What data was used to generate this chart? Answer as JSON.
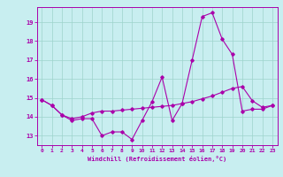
{
  "xlabel": "Windchill (Refroidissement éolien,°C)",
  "bg_color": "#c8eef0",
  "grid_color": "#9dd4cc",
  "line_color": "#aa00aa",
  "xlim": [
    -0.5,
    23.5
  ],
  "ylim": [
    12.5,
    19.8
  ],
  "xticks": [
    0,
    1,
    2,
    3,
    4,
    5,
    6,
    7,
    8,
    9,
    10,
    11,
    12,
    13,
    14,
    15,
    16,
    17,
    18,
    19,
    20,
    21,
    22,
    23
  ],
  "yticks": [
    13,
    14,
    15,
    16,
    17,
    18,
    19
  ],
  "line1_x": [
    0,
    1,
    2,
    3,
    4,
    5,
    6,
    7,
    8,
    9,
    10,
    11,
    12,
    13,
    14,
    15,
    16,
    17,
    18,
    19,
    20,
    21,
    22,
    23
  ],
  "line1_y": [
    14.9,
    14.6,
    14.1,
    13.8,
    13.9,
    13.9,
    13.0,
    13.2,
    13.2,
    12.8,
    13.8,
    14.8,
    16.1,
    13.8,
    14.7,
    17.0,
    19.3,
    19.5,
    18.1,
    17.3,
    14.3,
    14.4,
    14.4,
    14.6
  ],
  "line2_x": [
    0,
    1,
    2,
    3,
    4,
    5,
    6,
    7,
    8,
    9,
    10,
    11,
    12,
    13,
    14,
    15,
    16,
    17,
    18,
    19,
    20,
    21,
    22,
    23
  ],
  "line2_y": [
    14.9,
    14.6,
    14.1,
    13.9,
    14.0,
    14.2,
    14.3,
    14.3,
    14.35,
    14.4,
    14.45,
    14.5,
    14.55,
    14.6,
    14.7,
    14.8,
    14.95,
    15.1,
    15.3,
    15.5,
    15.6,
    14.85,
    14.5,
    14.6
  ]
}
